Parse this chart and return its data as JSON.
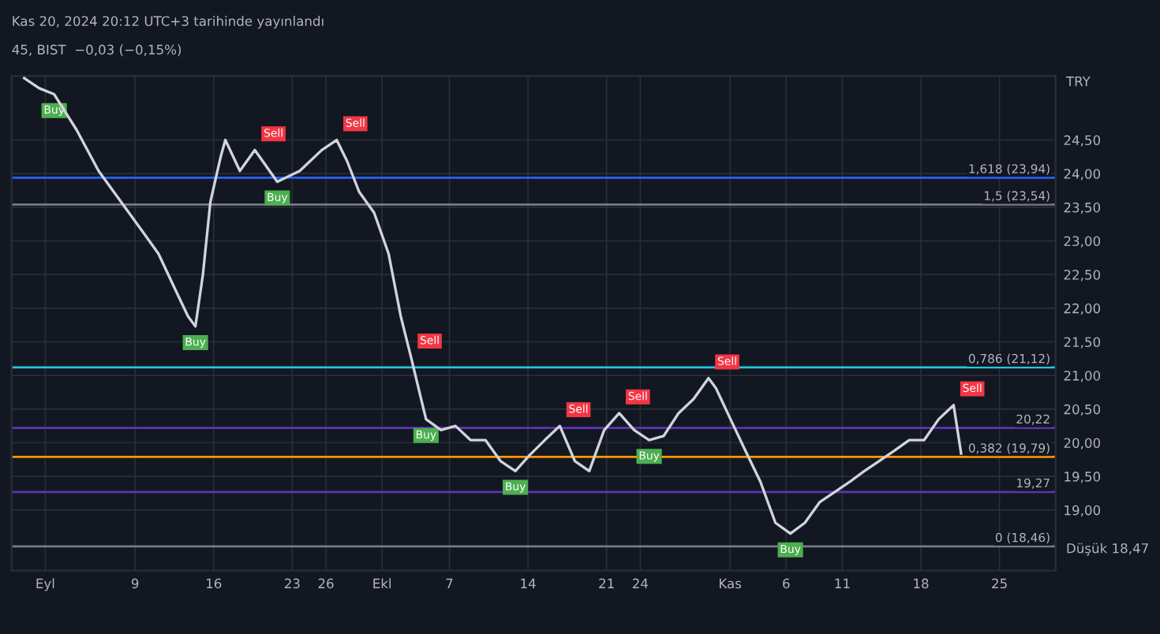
{
  "chart_data": {
    "type": "line",
    "title": "45, BIST  −0,03 (−0,15%)",
    "subtitle": "Kas 20, 2024 20:12 UTC+3 tarihinde yayınlandı",
    "x": [
      "2024-08-30T03:00",
      "2024-08-31T11:00",
      "2024-09-01T19:00",
      "2024-09-03T19:00",
      "2024-09-05T18:00",
      "2024-09-07T18:00",
      "2024-09-09T18:00",
      "2024-09-11T02:00",
      "2024-09-12T09:00",
      "2024-09-13T17:00",
      "2024-09-14T09:00",
      "2024-09-15T01:00",
      "2024-09-15T17:00",
      "2024-09-16T15:00",
      "2024-09-17T01:00",
      "2024-09-18T08:00",
      "2024-09-19T16:00",
      "2024-09-21T16:00",
      "2024-09-23T16:00",
      "2024-09-25T15:00",
      "2024-09-26T23:00",
      "2024-09-27T21:00",
      "2024-09-28T23:00",
      "2024-09-30T07:00",
      "2024-10-01T14:00",
      "2024-10-02T16:00",
      "2024-10-03T14:00",
      "2024-10-04T06:00",
      "2024-10-04T22:00",
      "2024-10-06T06:00",
      "2024-10-07T13:00",
      "2024-10-08T21:00",
      "2024-10-10T05:00",
      "2024-10-11T13:00",
      "2024-10-12T21:00",
      "2024-10-14T04:00",
      "2024-10-15T12:00",
      "2024-10-16T20:00",
      "2024-10-18T04:00",
      "2024-10-19T11:00",
      "2024-10-20T19:00",
      "2024-10-22T03:00",
      "2024-10-23T11:00",
      "2024-10-24T19:00",
      "2024-10-26T02:00",
      "2024-10-27T10:00",
      "2024-10-28T18:00",
      "2024-10-30T02:00",
      "2024-10-30T18:00",
      "2024-11-01T01:00",
      "2024-11-02T09:00",
      "2024-11-03T17:00",
      "2024-11-05T01:00",
      "2024-11-06T09:00",
      "2024-11-07T16:00",
      "2024-11-09T00:00",
      "2024-11-10T08:00",
      "2024-11-11T16:00",
      "2024-11-12T23:00",
      "2024-11-14T07:00",
      "2024-11-15T15:00",
      "2024-11-16T23:00",
      "2024-11-18T07:00",
      "2024-11-19T14:00",
      "2024-11-20T22:00",
      "2024-11-21T14:00"
    ],
    "series": [
      {
        "color": "#d1d4dc",
        "values": [
          25.42,
          25.27,
          25.18,
          24.65,
          24.04,
          23.58,
          23.12,
          22.81,
          22.35,
          21.88,
          21.73,
          22.5,
          23.58,
          24.25,
          24.5,
          24.04,
          24.35,
          23.88,
          24.04,
          24.35,
          24.5,
          24.19,
          23.73,
          23.42,
          22.81,
          21.88,
          21.27,
          20.81,
          20.35,
          20.19,
          20.25,
          20.04,
          20.04,
          19.73,
          19.58,
          19.82,
          20.04,
          20.25,
          19.73,
          19.58,
          20.19,
          20.44,
          20.19,
          20.04,
          20.1,
          20.44,
          20.65,
          20.96,
          20.81,
          20.35,
          19.88,
          19.42,
          18.81,
          18.65,
          18.81,
          19.12,
          19.27,
          19.42,
          19.58,
          19.73,
          19.88,
          20.04,
          20.04,
          20.35,
          20.56,
          19.84
        ]
      }
    ],
    "xlim": [
      "2024-08-29",
      "2024-11-30"
    ],
    "xticks": [
      {
        "value": "2024-09-01",
        "label": "Eyl"
      },
      {
        "value": "2024-09-09",
        "label": "9"
      },
      {
        "value": "2024-09-16",
        "label": "16"
      },
      {
        "value": "2024-09-23",
        "label": "23"
      },
      {
        "value": "2024-09-26",
        "label": "26"
      },
      {
        "value": "2024-10-01",
        "label": "Ekl"
      },
      {
        "value": "2024-10-07",
        "label": "7"
      },
      {
        "value": "2024-10-14",
        "label": "14"
      },
      {
        "value": "2024-10-21",
        "label": "21"
      },
      {
        "value": "2024-10-24",
        "label": "24"
      },
      {
        "value": "2024-11-01",
        "label": "Kas"
      },
      {
        "value": "2024-11-06",
        "label": "6"
      },
      {
        "value": "2024-11-11",
        "label": "11"
      },
      {
        "value": "2024-11-18",
        "label": "18"
      },
      {
        "value": "2024-11-25",
        "label": "25"
      }
    ],
    "ylim": [
      18.1,
      25.45
    ],
    "yticks": [
      {
        "value": 19,
        "label": "19,00"
      },
      {
        "value": 19.5,
        "label": "19,50"
      },
      {
        "value": 20,
        "label": "20,00"
      },
      {
        "value": 20.5,
        "label": "20,50"
      },
      {
        "value": 21,
        "label": "21,00"
      },
      {
        "value": 21.5,
        "label": "21,50"
      },
      {
        "value": 22,
        "label": "22,00"
      },
      {
        "value": 22.5,
        "label": "22,50"
      },
      {
        "value": 23,
        "label": "23,00"
      },
      {
        "value": 23.5,
        "label": "23,50"
      },
      {
        "value": 24,
        "label": "24,00"
      },
      {
        "value": 24.5,
        "label": "24,50"
      }
    ],
    "grid": true,
    "marker": "none",
    "line_style": "solid",
    "ref_lines": [
      {
        "axis": "y",
        "value": 23.94,
        "label": "1,618 (23,94)",
        "color": "#2962ff"
      },
      {
        "axis": "y",
        "value": 23.54,
        "label": "1,5 (23,54)",
        "color": "#787b86"
      },
      {
        "axis": "y",
        "value": 21.12,
        "label": "0,786 (21,12)",
        "color": "#26c6da"
      },
      {
        "axis": "y",
        "value": 19.79,
        "label": "0,382 (19,79)",
        "color": "#ff9800"
      },
      {
        "axis": "y",
        "value": 18.46,
        "label": "0 (18,46)",
        "color": "#787b86"
      },
      {
        "axis": "y",
        "value": 20.22,
        "label": "20,22",
        "color": "#5e35b1"
      },
      {
        "axis": "y",
        "value": 19.27,
        "label": "19,27",
        "color": "#5e35b1"
      }
    ],
    "annotations": [
      "TRY",
      "Düşük 18,47",
      {
        "text": "Buy",
        "x": "2024-09-01T19:00",
        "y": 25.18
      },
      {
        "text": "Buy",
        "x": "2024-09-14T09:00",
        "y": 21.73
      },
      {
        "text": "Sell",
        "x": "2024-09-19T16:00",
        "y": 24.35
      },
      {
        "text": "Buy",
        "x": "2024-09-21T16:00",
        "y": 23.88
      },
      {
        "text": "Sell",
        "x": "2024-09-26T23:00",
        "y": 24.5
      },
      {
        "text": "Buy",
        "x": "2024-10-04T22:00",
        "y": 20.35
      },
      {
        "text": "Sell",
        "x": "2024-10-03T14:00",
        "y": 21.27
      },
      {
        "text": "Buy",
        "x": "2024-10-12T21:00",
        "y": 19.58
      },
      {
        "text": "Sell",
        "x": "2024-10-16T20:00",
        "y": 20.25
      },
      {
        "text": "Sell",
        "x": "2024-10-22T03:00",
        "y": 20.44
      },
      {
        "text": "Buy",
        "x": "2024-10-24T19:00",
        "y": 20.04
      },
      {
        "text": "Sell",
        "x": "2024-10-30T02:00",
        "y": 20.96
      },
      {
        "text": "Buy",
        "x": "2024-11-06T09:00",
        "y": 18.65
      },
      {
        "text": "Sell",
        "x": "2024-11-20T22:00",
        "y": 20.56
      }
    ]
  }
}
